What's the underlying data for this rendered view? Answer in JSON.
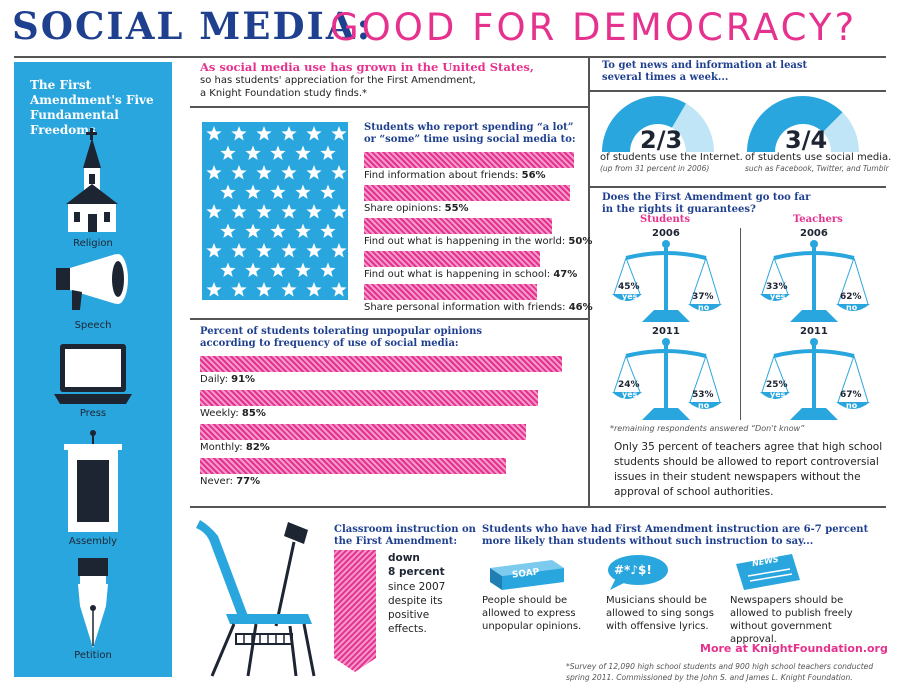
{
  "header": {
    "title_main": "SOCIAL MEDIA:",
    "title_sub": "GOOD FOR DEMOCRACY?"
  },
  "sidebar": {
    "title": "The First Amendment's Five Fundamental Freedoms",
    "freedoms": [
      {
        "label": "Religion",
        "icon": "church-icon"
      },
      {
        "label": "Speech",
        "icon": "megaphone-icon"
      },
      {
        "label": "Press",
        "icon": "laptop-icon"
      },
      {
        "label": "Assembly",
        "icon": "podium-icon"
      },
      {
        "label": "Petition",
        "icon": "fountain-pen-icon"
      }
    ]
  },
  "intro": {
    "heading": "As social media use has grown in the United States,",
    "line1": "so has students' appreciation for the First Amendment,",
    "line2": "a Knight Foundation study finds.*"
  },
  "social_use": {
    "heading1": "Students who report spending “a lot”",
    "heading2": "or “some” time using social media to:",
    "items": [
      {
        "label": "Find information about friends:",
        "value": "56%",
        "pct": 56
      },
      {
        "label": "Share opinions:",
        "value": "55%",
        "pct": 55
      },
      {
        "label": "Find out what is happening in the world:",
        "value": "50%",
        "pct": 50
      },
      {
        "label": "Find out what is happening in school:",
        "value": "47%",
        "pct": 47
      },
      {
        "label": "Share personal information with friends:",
        "value": "46%",
        "pct": 46
      }
    ]
  },
  "tolerance": {
    "heading1": "Percent of students tolerating unpopular opinions",
    "heading2": "according to frequency of use of social media:",
    "items": [
      {
        "label": "Daily:",
        "value": "91%",
        "pct": 91
      },
      {
        "label": "Weekly:",
        "value": "85%",
        "pct": 85
      },
      {
        "label": "Monthly:",
        "value": "82%",
        "pct": 82
      },
      {
        "label": "Never:",
        "value": "77%",
        "pct": 77
      }
    ]
  },
  "news": {
    "heading1": "To get news and information at least",
    "heading2": "several times a week...",
    "internet": {
      "value": "2/3",
      "fraction": 0.667,
      "label": "of students use the Internet.",
      "note": "(up from 31 percent in 2006)"
    },
    "social": {
      "value": "3/4",
      "fraction": 0.75,
      "label": "of students use social media.",
      "note": "such as Facebook, Twitter, and Tumblr"
    }
  },
  "first_amendment": {
    "heading1": "Does the First Amendment go too far",
    "heading2": "in the rights it guarantees?",
    "students_label": "Students",
    "teachers_label": "Teachers",
    "yes_word": "yes",
    "no_word": "no",
    "scales": [
      {
        "group": "students",
        "year": "2006",
        "yes": "45%",
        "no": "37%"
      },
      {
        "group": "teachers",
        "year": "2006",
        "yes": "33%",
        "no": "62%"
      },
      {
        "group": "students",
        "year": "2011",
        "yes": "24%",
        "no": "53%"
      },
      {
        "group": "teachers",
        "year": "2011",
        "yes": "25%",
        "no": "67%"
      }
    ],
    "footnote": "*remaining respondents answered “Don't know”",
    "summary": "Only 35 percent of teachers agree that high school students should be allowed to report controversial issues in their student newspapers without the approval of school authorities."
  },
  "instruction": {
    "heading1": "Classroom instruction on",
    "heading2": "the First Amendment:",
    "down": "down",
    "percent": "8 percent",
    "rest": "since 2007 despite its positive effects."
  },
  "likelihood": {
    "heading1": "Students who have had First Amendment instruction are 6-7 percent",
    "heading2": "more likely than students without such instruction to say...",
    "soap_label": "SOAP",
    "symbols_label": "#*♪$!",
    "news_label": "NEWS",
    "items": [
      {
        "text": "People should be allowed to express unpopular opinions."
      },
      {
        "text": "Musicians should be allowed to sing songs with offensive lyrics."
      },
      {
        "text": "Newspapers should be allowed to publish freely without government approval."
      }
    ]
  },
  "footer": {
    "more": "More at KnightFoundation.org",
    "survey1": "*Survey of 12,090 high school students and 900 high school teachers conducted",
    "survey2": "spring 2011. Commissioned by the John S. and James L. Knight Foundation."
  },
  "colors": {
    "blue": "#2aa6de",
    "navy": "#1f3f8f",
    "pink": "#e6328f"
  }
}
